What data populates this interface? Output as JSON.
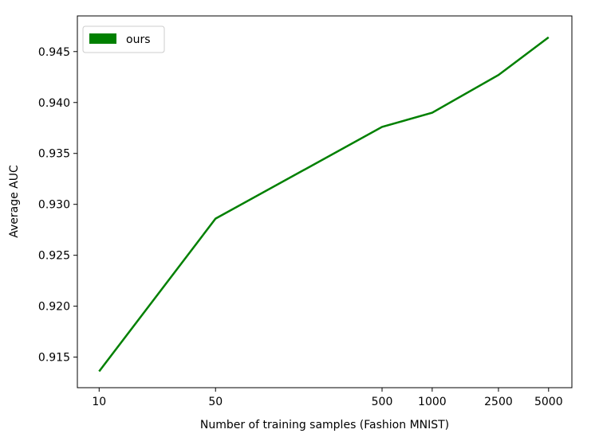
{
  "chart_data": {
    "type": "line",
    "log_x": true,
    "xlabel": "Number of training samples (Fashion MNIST)",
    "ylabel": "Average AUC",
    "x": [
      10,
      50,
      500,
      1000,
      2500,
      5000
    ],
    "series": [
      {
        "name": "ours",
        "color": "#008000",
        "values": [
          0.9136,
          0.9286,
          0.9376,
          0.939,
          0.9427,
          0.9464
        ]
      }
    ],
    "xlim": [
      7.4,
      6900
    ],
    "xticks": [
      10,
      50,
      500,
      1000,
      2500,
      5000
    ],
    "ylim": [
      0.912,
      0.9485
    ],
    "yticks": [
      0.915,
      {
        "value": 0.92,
        "label": "0.920"
      },
      0.925,
      {
        "value": 0.93,
        "label": "0.930"
      },
      0.935,
      {
        "value": 0.94,
        "label": "0.940"
      },
      0.945
    ],
    "legend": "upper left"
  }
}
